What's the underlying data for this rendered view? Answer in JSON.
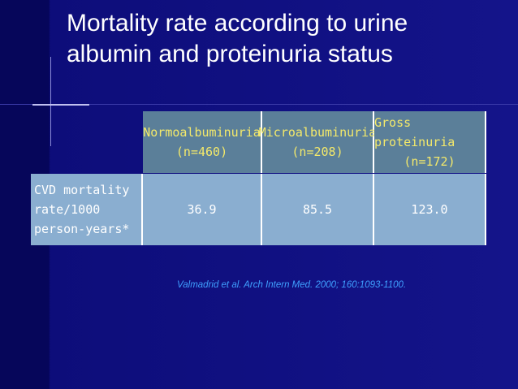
{
  "title": [
    "Mortality rate according to urine",
    "albumin and proteinuria status"
  ],
  "table": {
    "columns": [
      [
        "Normoalbuminuria",
        "(n=460)"
      ],
      [
        "Microalbuminuria",
        "(n=208)"
      ],
      [
        "Gross proteinuria",
        "(n=172)"
      ]
    ],
    "rows": [
      {
        "label": [
          "CVD mortality",
          "rate/1000",
          "person-years*"
        ],
        "values": [
          "36.9",
          "85.5",
          "123.0"
        ]
      }
    ]
  },
  "citation": "Valmadrid et al. Arch Intern Med. 2000; 160:1093-1100."
}
